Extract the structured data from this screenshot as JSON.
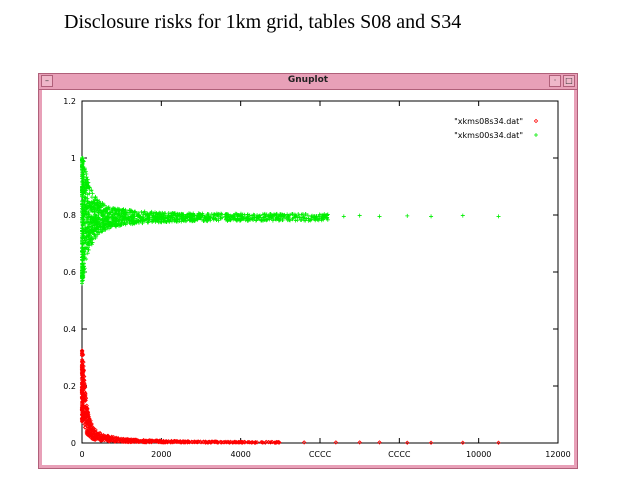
{
  "slide": {
    "title": "Disclosure risks for 1km grid, tables S08 and S34"
  },
  "window": {
    "title": "Gnuplot"
  },
  "colors": {
    "series1": "#ff0000",
    "series2": "#00ee00",
    "frame": "#e8a0b8"
  },
  "icons": {
    "menu": "window-menu-icon",
    "minimize": "minimize-icon",
    "maximize": "maximize-icon"
  },
  "chart_data": {
    "type": "scatter",
    "title": "",
    "xlabel": "",
    "ylabel": "",
    "xlim": [
      0,
      12000
    ],
    "ylim": [
      0,
      1.2
    ],
    "grid": false,
    "legend": "top-right",
    "xticks": [
      {
        "value": 0,
        "label": "0"
      },
      {
        "value": 2000,
        "label": "2000"
      },
      {
        "value": 4000,
        "label": "4000"
      },
      {
        "value": 6000,
        "label": "CCCC"
      },
      {
        "value": 8000,
        "label": "CCCC"
      },
      {
        "value": 10000,
        "label": "10000"
      },
      {
        "value": 12000,
        "label": "12000"
      }
    ],
    "yticks": [
      {
        "value": 0,
        "label": "0"
      },
      {
        "value": 0.2,
        "label": "0.2"
      },
      {
        "value": 0.4,
        "label": "0.4"
      },
      {
        "value": 0.6,
        "label": "0.6"
      },
      {
        "value": 0.8,
        "label": "0.8"
      },
      {
        "value": 1,
        "label": "1"
      },
      {
        "value": 1.2,
        "label": "1.2"
      }
    ],
    "series": [
      {
        "name": "\"xkms08s34.dat\"",
        "marker": "diamond",
        "color": "#ff0000",
        "points": [
          [
            20,
            0.25
          ],
          [
            40,
            0.22
          ],
          [
            60,
            0.18
          ],
          [
            80,
            0.15
          ],
          [
            100,
            0.12
          ],
          [
            130,
            0.1
          ],
          [
            160,
            0.08
          ],
          [
            200,
            0.065
          ],
          [
            250,
            0.05
          ],
          [
            300,
            0.04
          ],
          [
            400,
            0.03
          ],
          [
            500,
            0.025
          ],
          [
            700,
            0.018
          ],
          [
            900,
            0.014
          ],
          [
            1200,
            0.01
          ],
          [
            1600,
            0.008
          ],
          [
            2000,
            0.006
          ],
          [
            2600,
            0.005
          ],
          [
            3200,
            0.004
          ],
          [
            4000,
            0.003
          ],
          [
            4800,
            0.003
          ],
          [
            5600,
            0.002
          ],
          [
            6400,
            0.002
          ],
          [
            7000,
            0.002
          ],
          [
            7500,
            0.002
          ],
          [
            8200,
            0.001
          ],
          [
            8800,
            0.001
          ],
          [
            9600,
            0.001
          ],
          [
            10500,
            0.001
          ]
        ]
      },
      {
        "name": "\"xkms00s34.dat\"",
        "marker": "plus",
        "color": "#00ee00",
        "points": [
          [
            20,
            1.0
          ],
          [
            20,
            0.92
          ],
          [
            30,
            0.88
          ],
          [
            40,
            0.85
          ],
          [
            50,
            0.7
          ],
          [
            60,
            0.9
          ],
          [
            70,
            0.6
          ],
          [
            80,
            0.75
          ],
          [
            100,
            0.86
          ],
          [
            120,
            0.72
          ],
          [
            150,
            0.84
          ],
          [
            180,
            0.74
          ],
          [
            220,
            0.83
          ],
          [
            260,
            0.75
          ],
          [
            300,
            0.82
          ],
          [
            400,
            0.76
          ],
          [
            500,
            0.81
          ],
          [
            700,
            0.77
          ],
          [
            900,
            0.8
          ],
          [
            1200,
            0.78
          ],
          [
            1600,
            0.8
          ],
          [
            2000,
            0.785
          ],
          [
            2600,
            0.795
          ],
          [
            3200,
            0.79
          ],
          [
            4000,
            0.795
          ],
          [
            4800,
            0.795
          ],
          [
            5600,
            0.797
          ],
          [
            6000,
            0.8
          ],
          [
            6600,
            0.795
          ],
          [
            7000,
            0.798
          ],
          [
            7500,
            0.795
          ],
          [
            8200,
            0.797
          ],
          [
            8800,
            0.795
          ],
          [
            9600,
            0.798
          ],
          [
            10500,
            0.795
          ]
        ]
      }
    ]
  }
}
